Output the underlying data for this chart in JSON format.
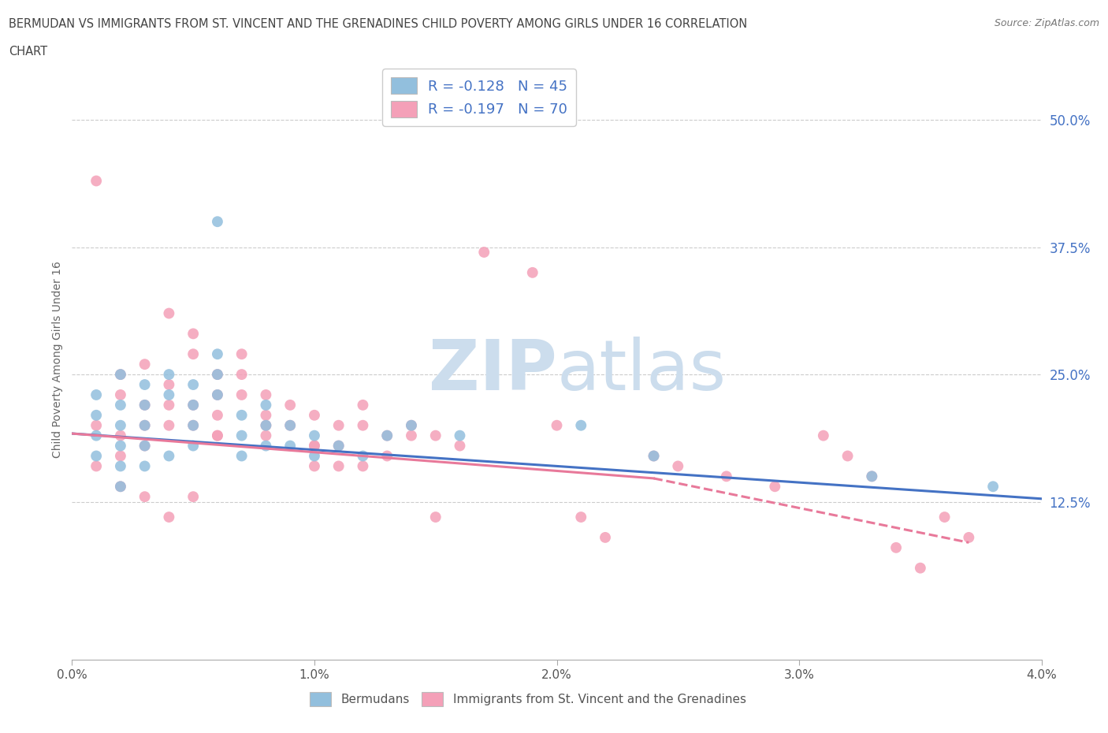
{
  "title_line1": "BERMUDAN VS IMMIGRANTS FROM ST. VINCENT AND THE GRENADINES CHILD POVERTY AMONG GIRLS UNDER 16 CORRELATION",
  "title_line2": "CHART",
  "source": "Source: ZipAtlas.com",
  "ylabel": "Child Poverty Among Girls Under 16",
  "right_ytick_labels": [
    "50.0%",
    "37.5%",
    "25.0%",
    "12.5%"
  ],
  "right_ytick_values": [
    0.5,
    0.375,
    0.25,
    0.125
  ],
  "xlim": [
    0.0,
    0.04
  ],
  "ylim": [
    -0.03,
    0.56
  ],
  "x_tick_labels": [
    "0.0%",
    "1.0%",
    "2.0%",
    "3.0%",
    "4.0%"
  ],
  "x_tick_values": [
    0.0,
    0.01,
    0.02,
    0.03,
    0.04
  ],
  "legend_label_r_blue": "R = -0.128   N = 45",
  "legend_label_r_pink": "R = -0.197   N = 70",
  "legend_label_bermudans": "Bermudans",
  "legend_label_immigrants": "Immigrants from St. Vincent and the Grenadines",
  "bermudans_color": "#92bfdd",
  "immigrants_color": "#f4a0b8",
  "blue_line_color": "#4472c4",
  "pink_line_color": "#e8799a",
  "watermark_color": "#ccdded",
  "blue_line_y0": 0.192,
  "blue_line_y1": 0.128,
  "pink_line_y0": 0.192,
  "pink_line_y1_solid": 0.148,
  "pink_line_x1_solid": 0.024,
  "pink_line_y1_dash": 0.085,
  "pink_line_x1_dash": 0.037,
  "blue_scatter_x": [
    0.001,
    0.001,
    0.001,
    0.001,
    0.002,
    0.002,
    0.002,
    0.002,
    0.002,
    0.002,
    0.003,
    0.003,
    0.003,
    0.003,
    0.003,
    0.004,
    0.004,
    0.004,
    0.005,
    0.005,
    0.005,
    0.005,
    0.006,
    0.006,
    0.006,
    0.007,
    0.007,
    0.007,
    0.008,
    0.008,
    0.008,
    0.009,
    0.009,
    0.01,
    0.01,
    0.011,
    0.012,
    0.013,
    0.014,
    0.016,
    0.021,
    0.024,
    0.033,
    0.038,
    0.006
  ],
  "blue_scatter_y": [
    0.19,
    0.21,
    0.23,
    0.17,
    0.2,
    0.22,
    0.18,
    0.16,
    0.14,
    0.25,
    0.24,
    0.22,
    0.2,
    0.18,
    0.16,
    0.25,
    0.23,
    0.17,
    0.24,
    0.22,
    0.2,
    0.18,
    0.27,
    0.25,
    0.23,
    0.21,
    0.19,
    0.17,
    0.22,
    0.2,
    0.18,
    0.2,
    0.18,
    0.19,
    0.17,
    0.18,
    0.17,
    0.19,
    0.2,
    0.19,
    0.2,
    0.17,
    0.15,
    0.14,
    0.4
  ],
  "pink_scatter_x": [
    0.001,
    0.001,
    0.002,
    0.002,
    0.002,
    0.002,
    0.003,
    0.003,
    0.003,
    0.003,
    0.004,
    0.004,
    0.004,
    0.004,
    0.005,
    0.005,
    0.005,
    0.005,
    0.006,
    0.006,
    0.006,
    0.006,
    0.007,
    0.007,
    0.007,
    0.008,
    0.008,
    0.008,
    0.009,
    0.009,
    0.01,
    0.01,
    0.01,
    0.011,
    0.011,
    0.011,
    0.012,
    0.012,
    0.013,
    0.013,
    0.014,
    0.015,
    0.015,
    0.016,
    0.017,
    0.019,
    0.02,
    0.021,
    0.022,
    0.024,
    0.025,
    0.027,
    0.029,
    0.031,
    0.032,
    0.033,
    0.034,
    0.035,
    0.036,
    0.037,
    0.001,
    0.002,
    0.003,
    0.004,
    0.005,
    0.006,
    0.008,
    0.01,
    0.012,
    0.014
  ],
  "pink_scatter_y": [
    0.44,
    0.2,
    0.23,
    0.25,
    0.19,
    0.17,
    0.22,
    0.2,
    0.18,
    0.26,
    0.24,
    0.22,
    0.2,
    0.31,
    0.29,
    0.27,
    0.22,
    0.2,
    0.25,
    0.23,
    0.21,
    0.19,
    0.27,
    0.25,
    0.23,
    0.23,
    0.21,
    0.19,
    0.22,
    0.2,
    0.18,
    0.16,
    0.21,
    0.2,
    0.18,
    0.16,
    0.22,
    0.2,
    0.19,
    0.17,
    0.2,
    0.11,
    0.19,
    0.18,
    0.37,
    0.35,
    0.2,
    0.11,
    0.09,
    0.17,
    0.16,
    0.15,
    0.14,
    0.19,
    0.17,
    0.15,
    0.08,
    0.06,
    0.11,
    0.09,
    0.16,
    0.14,
    0.13,
    0.11,
    0.13,
    0.19,
    0.2,
    0.18,
    0.16,
    0.19
  ]
}
